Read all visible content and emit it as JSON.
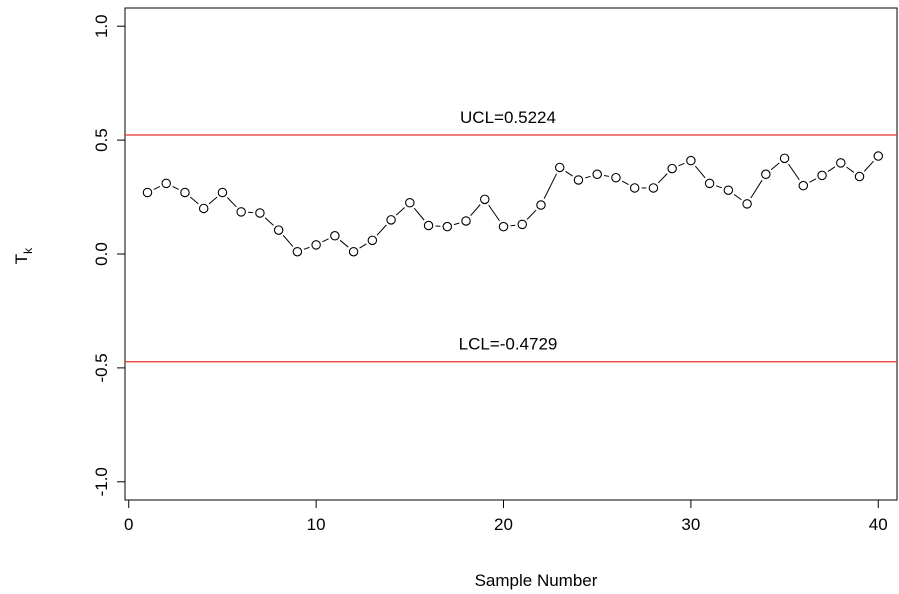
{
  "chart_data": {
    "type": "scatter",
    "xlabel": "Sample Number",
    "ylabel": "T",
    "ylabel_subscript": "k",
    "xlim": [
      -0.2,
      41
    ],
    "ylim": [
      -1.08,
      1.08
    ],
    "xticks": [
      0,
      10,
      20,
      30,
      40
    ],
    "yticks": [
      -1.0,
      -0.5,
      0.0,
      0.5,
      1.0
    ],
    "ytick_labels": [
      "-1.0",
      "-0.5",
      "0.0",
      "0.5",
      "1.0"
    ],
    "grid": false,
    "series": [
      {
        "x": [
          1,
          2,
          3,
          4,
          5,
          6,
          7,
          8,
          9,
          10,
          11,
          12,
          13,
          14,
          15,
          16,
          17,
          18,
          19,
          20,
          21,
          22,
          23,
          24,
          25,
          26,
          27,
          28,
          29,
          30,
          31,
          32,
          33,
          34,
          35,
          36,
          37,
          38,
          39,
          40
        ],
        "y": [
          0.27,
          0.31,
          0.27,
          0.2,
          0.27,
          0.185,
          0.18,
          0.105,
          0.01,
          0.04,
          0.08,
          0.01,
          0.06,
          0.15,
          0.225,
          0.125,
          0.12,
          0.145,
          0.24,
          0.12,
          0.13,
          0.215,
          0.38,
          0.325,
          0.35,
          0.335,
          0.29,
          0.29,
          0.375,
          0.41,
          0.31,
          0.28,
          0.22,
          0.35,
          0.42,
          0.3,
          0.345,
          0.4,
          0.34,
          0.43
        ]
      }
    ],
    "control_limits": [
      {
        "value": 0.5224,
        "label": "UCL=0.5224",
        "color": "#e8312a"
      },
      {
        "value": -0.4729,
        "label": "LCL=-0.4729",
        "color": "#e8312a"
      }
    ]
  }
}
